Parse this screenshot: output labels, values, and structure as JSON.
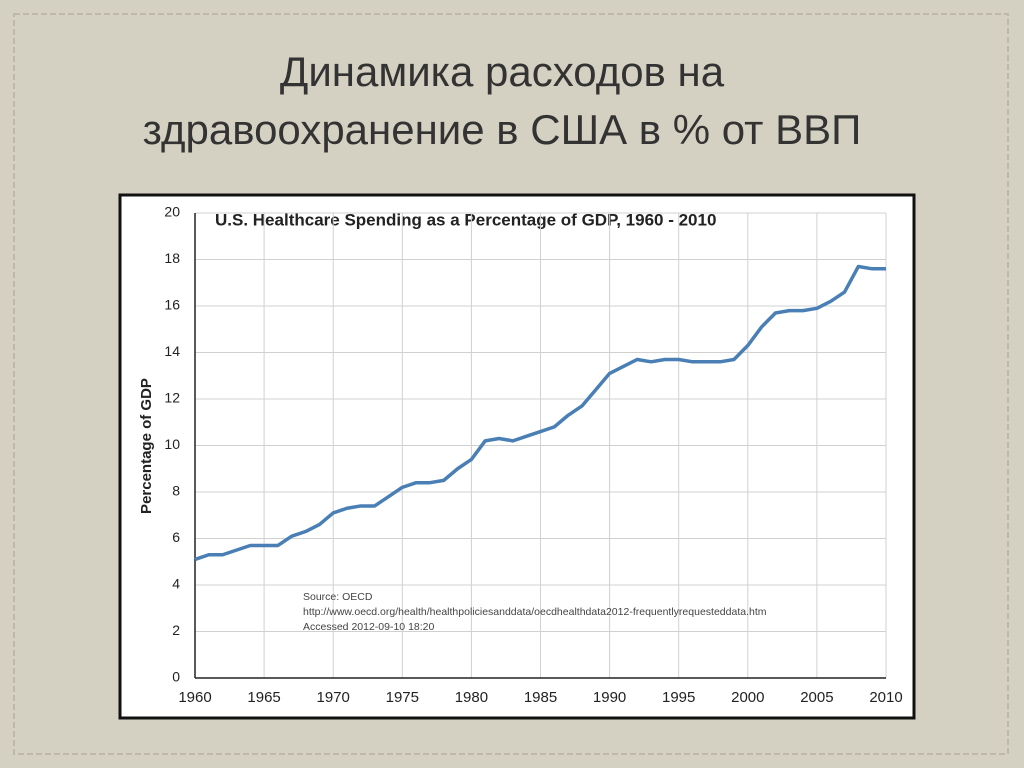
{
  "slide": {
    "title_lines": [
      "Динамика расходов на",
      "здравоохранение в США в % от ВВП"
    ]
  },
  "chart_data": {
    "type": "line",
    "title": "U.S. Healthcare Spending as a Percentage of GDP, 1960 - 2010",
    "y_label": "Percentage of GDP",
    "annotation_lines": [
      "Source: OECD",
      "http://www.oecd.org/health/healthpoliciesanddata/oecdhealthdata2012-frequentlyrequesteddata.htm",
      "Accessed 2012-09-10 18:20"
    ],
    "x": [
      1960,
      1961,
      1962,
      1963,
      1964,
      1965,
      1966,
      1967,
      1968,
      1969,
      1970,
      1971,
      1972,
      1973,
      1974,
      1975,
      1976,
      1977,
      1978,
      1979,
      1980,
      1981,
      1982,
      1983,
      1984,
      1985,
      1986,
      1987,
      1988,
      1989,
      1990,
      1991,
      1992,
      1993,
      1994,
      1995,
      1996,
      1997,
      1998,
      1999,
      2000,
      2001,
      2002,
      2003,
      2004,
      2005,
      2006,
      2007,
      2008,
      2009,
      2010
    ],
    "series": [
      {
        "name": "Percentage of GDP",
        "color": "#4a7fb5",
        "values": [
          5.1,
          5.3,
          5.3,
          5.5,
          5.7,
          5.7,
          5.7,
          6.1,
          6.3,
          6.6,
          7.1,
          7.3,
          7.4,
          7.4,
          7.8,
          8.2,
          8.4,
          8.4,
          8.5,
          9.0,
          9.4,
          10.2,
          10.3,
          10.2,
          10.4,
          10.6,
          10.8,
          11.3,
          11.7,
          12.4,
          13.1,
          13.4,
          13.7,
          13.6,
          13.7,
          13.7,
          13.6,
          13.6,
          13.6,
          13.7,
          14.3,
          15.1,
          15.7,
          15.8,
          15.8,
          15.9,
          16.2,
          16.6,
          17.7,
          17.6,
          17.6
        ]
      }
    ],
    "xlim": [
      1960,
      2010
    ],
    "xticks": [
      1960,
      1965,
      1970,
      1975,
      1980,
      1985,
      1990,
      1995,
      2000,
      2005,
      2010
    ],
    "ylim": [
      0,
      20
    ],
    "yticks": [
      0,
      2,
      4,
      6,
      8,
      10,
      12,
      14,
      16,
      18,
      20
    ],
    "grid": true
  }
}
